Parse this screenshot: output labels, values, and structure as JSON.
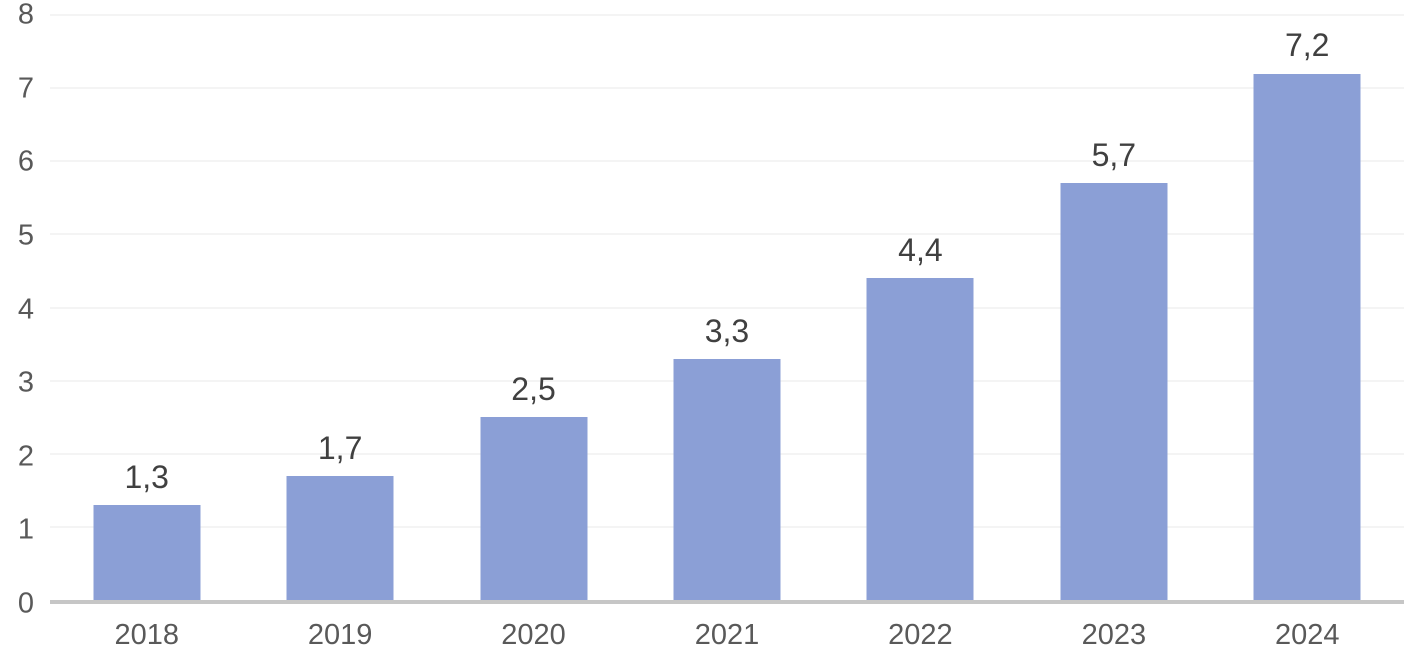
{
  "chart_data": {
    "type": "bar",
    "title": "",
    "xlabel": "",
    "ylabel": "",
    "categories": [
      "2018",
      "2019",
      "2020",
      "2021",
      "2022",
      "2023",
      "2024"
    ],
    "values": [
      1.3,
      1.7,
      2.5,
      3.3,
      4.4,
      5.7,
      7.2
    ],
    "value_labels": [
      "1,3",
      "1,7",
      "2,5",
      "3,3",
      "4,4",
      "5,7",
      "7,2"
    ],
    "decimal_separator": ",",
    "ylim": [
      0,
      8
    ],
    "ytick_step": 1,
    "ytick_labels": [
      "0",
      "1",
      "2",
      "3",
      "4",
      "5",
      "6",
      "7",
      "8"
    ],
    "grid": true,
    "legend": false,
    "colors": {
      "bar_fill": "#8B9FD6",
      "axis_label": "#595959",
      "data_label": "#404040",
      "gridline": "#F4F4F4",
      "axis_line": "#C6C6C6",
      "background": "#FFFFFF"
    }
  }
}
